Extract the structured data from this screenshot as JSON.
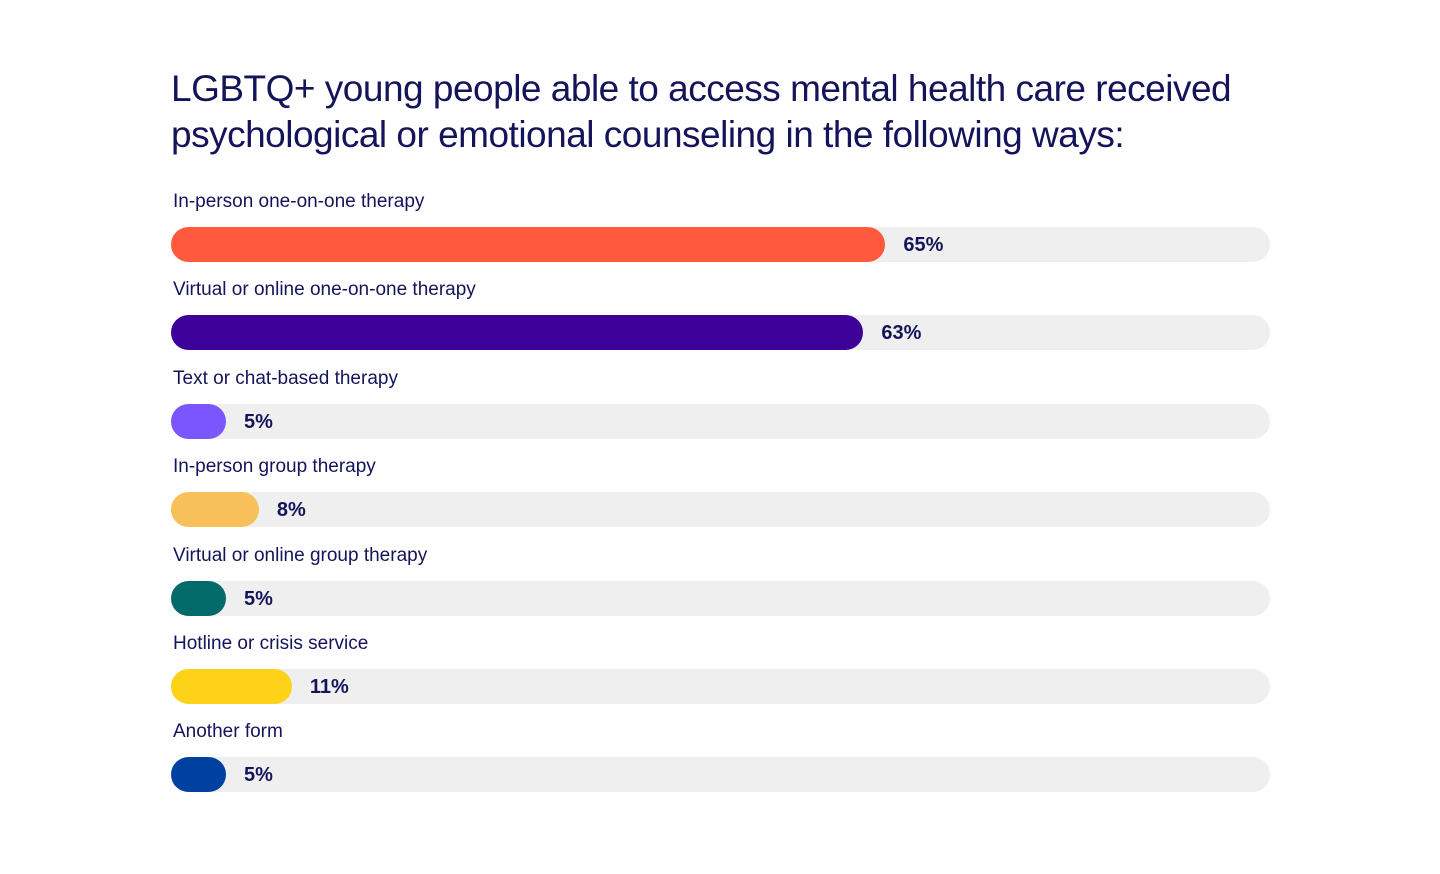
{
  "chart_data": {
    "type": "bar",
    "orientation": "horizontal",
    "title": "LGBTQ+ young people able to access mental health care received psychological or emotional counseling in the following ways:",
    "categories": [
      "In-person one-on-one therapy",
      "Virtual or online one-on-one therapy",
      "Text or chat-based therapy",
      "In-person group therapy",
      "Virtual or online group therapy",
      "Hotline or crisis service",
      "Another form"
    ],
    "values": [
      65,
      63,
      5,
      8,
      5,
      11,
      5
    ],
    "value_labels": [
      "65%",
      "63%",
      "5%",
      "8%",
      "5%",
      "11%",
      "5%"
    ],
    "colors": [
      "#ff5a3d",
      "#3d0099",
      "#7b56ff",
      "#f8c05b",
      "#036a6a",
      "#ffd21a",
      "#0040a0"
    ],
    "track_color": "#efefef",
    "xlim": [
      0,
      100
    ],
    "grid": false,
    "legend": "none"
  }
}
